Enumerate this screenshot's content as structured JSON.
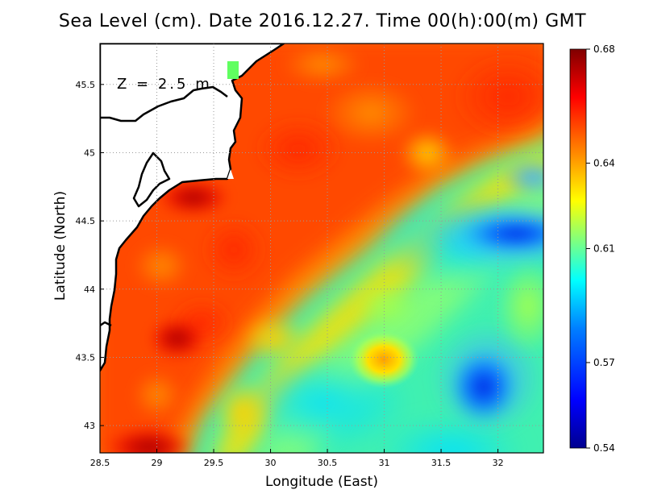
{
  "title": "Sea Level (cm). Date 2016.12.27. Time 00(h):00(m) GMT",
  "depth_label": "Z = 2.5 m",
  "xlabel": "Longitude (East)",
  "ylabel": "Latitude (North)",
  "map": {
    "lon_range": [
      28.5,
      32.4
    ],
    "lat_range": [
      42.8,
      45.8
    ],
    "x_ticks": [
      "28.5",
      "29",
      "29.5",
      "30",
      "30.5",
      "31",
      "31.5",
      "32"
    ],
    "x_tick_values": [
      28.5,
      29,
      29.5,
      30,
      30.5,
      31,
      31.5,
      32
    ],
    "y_ticks": [
      "43",
      "43.5",
      "44",
      "44.5",
      "45",
      "45.5"
    ],
    "y_tick_values": [
      43,
      43.5,
      44,
      44.5,
      45,
      45.5
    ],
    "grid": "dotted",
    "land_color": "#ffffff",
    "coastline_color": "#000000"
  },
  "colorbar": {
    "min": 0.54,
    "max": 0.68,
    "ticks": [
      "0.68",
      "0.64",
      "0.61",
      "0.57",
      "0.54"
    ],
    "tick_values": [
      0.68,
      0.64,
      0.61,
      0.57,
      0.54
    ],
    "colors": [
      "#00008f",
      "#0000ff",
      "#007fff",
      "#00ffff",
      "#7fff7f",
      "#ffff00",
      "#ff7f00",
      "#ff0000",
      "#800000"
    ]
  },
  "features": [
    {
      "name": "max-southwest",
      "lon": 28.95,
      "lat": 42.85,
      "value": 0.68
    },
    {
      "name": "max-near-coast",
      "lon": 29.3,
      "lat": 44.65,
      "value": 0.675
    },
    {
      "name": "eddy-center",
      "lon": 31.0,
      "lat": 43.5,
      "value": 0.635
    },
    {
      "name": "min-east",
      "lon": 32.2,
      "lat": 44.45,
      "value": 0.545
    },
    {
      "name": "min-southeast",
      "lon": 31.85,
      "lat": 43.3,
      "value": 0.55
    }
  ]
}
